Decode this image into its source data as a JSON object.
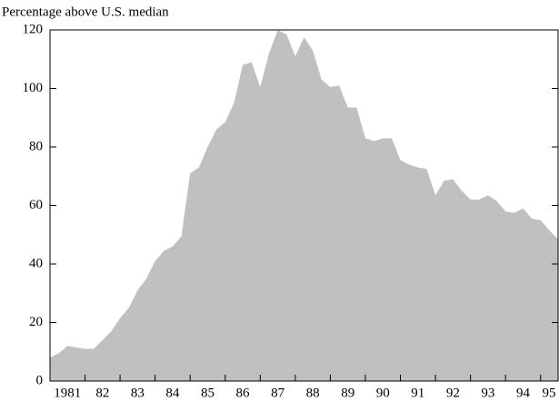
{
  "chart_data": {
    "type": "area",
    "title": "Percentage above U.S. median",
    "x": [
      1981,
      1981.25,
      1981.5,
      1981.75,
      1982,
      1982.25,
      1982.5,
      1982.75,
      1983,
      1983.25,
      1983.5,
      1983.75,
      1984,
      1984.25,
      1984.5,
      1984.75,
      1985,
      1985.25,
      1985.5,
      1985.75,
      1986,
      1986.25,
      1986.5,
      1986.75,
      1987,
      1987.25,
      1987.5,
      1987.75,
      1988,
      1988.25,
      1988.5,
      1988.75,
      1989,
      1989.25,
      1989.5,
      1989.75,
      1990,
      1990.25,
      1990.5,
      1990.75,
      1991,
      1991.25,
      1991.5,
      1991.75,
      1992,
      1992.25,
      1992.5,
      1992.75,
      1993,
      1993.25,
      1993.5,
      1993.75,
      1994,
      1994.25,
      1994.5,
      1994.75,
      1995,
      1995.25,
      1995.5
    ],
    "values": [
      8,
      9.5,
      12,
      11.5,
      11,
      11,
      14,
      17,
      21.5,
      25,
      31,
      35,
      41,
      44.5,
      46,
      49.5,
      71,
      73,
      80,
      86,
      88.5,
      95,
      108,
      109,
      100.5,
      112,
      120,
      118.5,
      111,
      117.5,
      113,
      103,
      100.5,
      101,
      93.5,
      93.5,
      83,
      82,
      83,
      83,
      75.5,
      74,
      73,
      72.5,
      63.5,
      68.5,
      69,
      65,
      62,
      62,
      63.5,
      61.5,
      58,
      57.5,
      59,
      55.5,
      55,
      51.5,
      48.5
    ],
    "color": "#c0c0c0",
    "xlim": [
      1981,
      1995.5
    ],
    "xticks": [
      {
        "value": 1981,
        "label": "1981"
      },
      {
        "value": 1982,
        "label": "82"
      },
      {
        "value": 1983,
        "label": "83"
      },
      {
        "value": 1984,
        "label": "84"
      },
      {
        "value": 1985,
        "label": "85"
      },
      {
        "value": 1986,
        "label": "86"
      },
      {
        "value": 1987,
        "label": "87"
      },
      {
        "value": 1988,
        "label": "88"
      },
      {
        "value": 1989,
        "label": "89"
      },
      {
        "value": 1990,
        "label": "90"
      },
      {
        "value": 1991,
        "label": "91"
      },
      {
        "value": 1992,
        "label": "92"
      },
      {
        "value": 1993,
        "label": "93"
      },
      {
        "value": 1994,
        "label": "94"
      },
      {
        "value": 1995,
        "label": "95"
      }
    ],
    "ylim": [
      0,
      120
    ],
    "yticks": [
      0,
      20,
      40,
      60,
      80,
      100,
      120
    ]
  }
}
